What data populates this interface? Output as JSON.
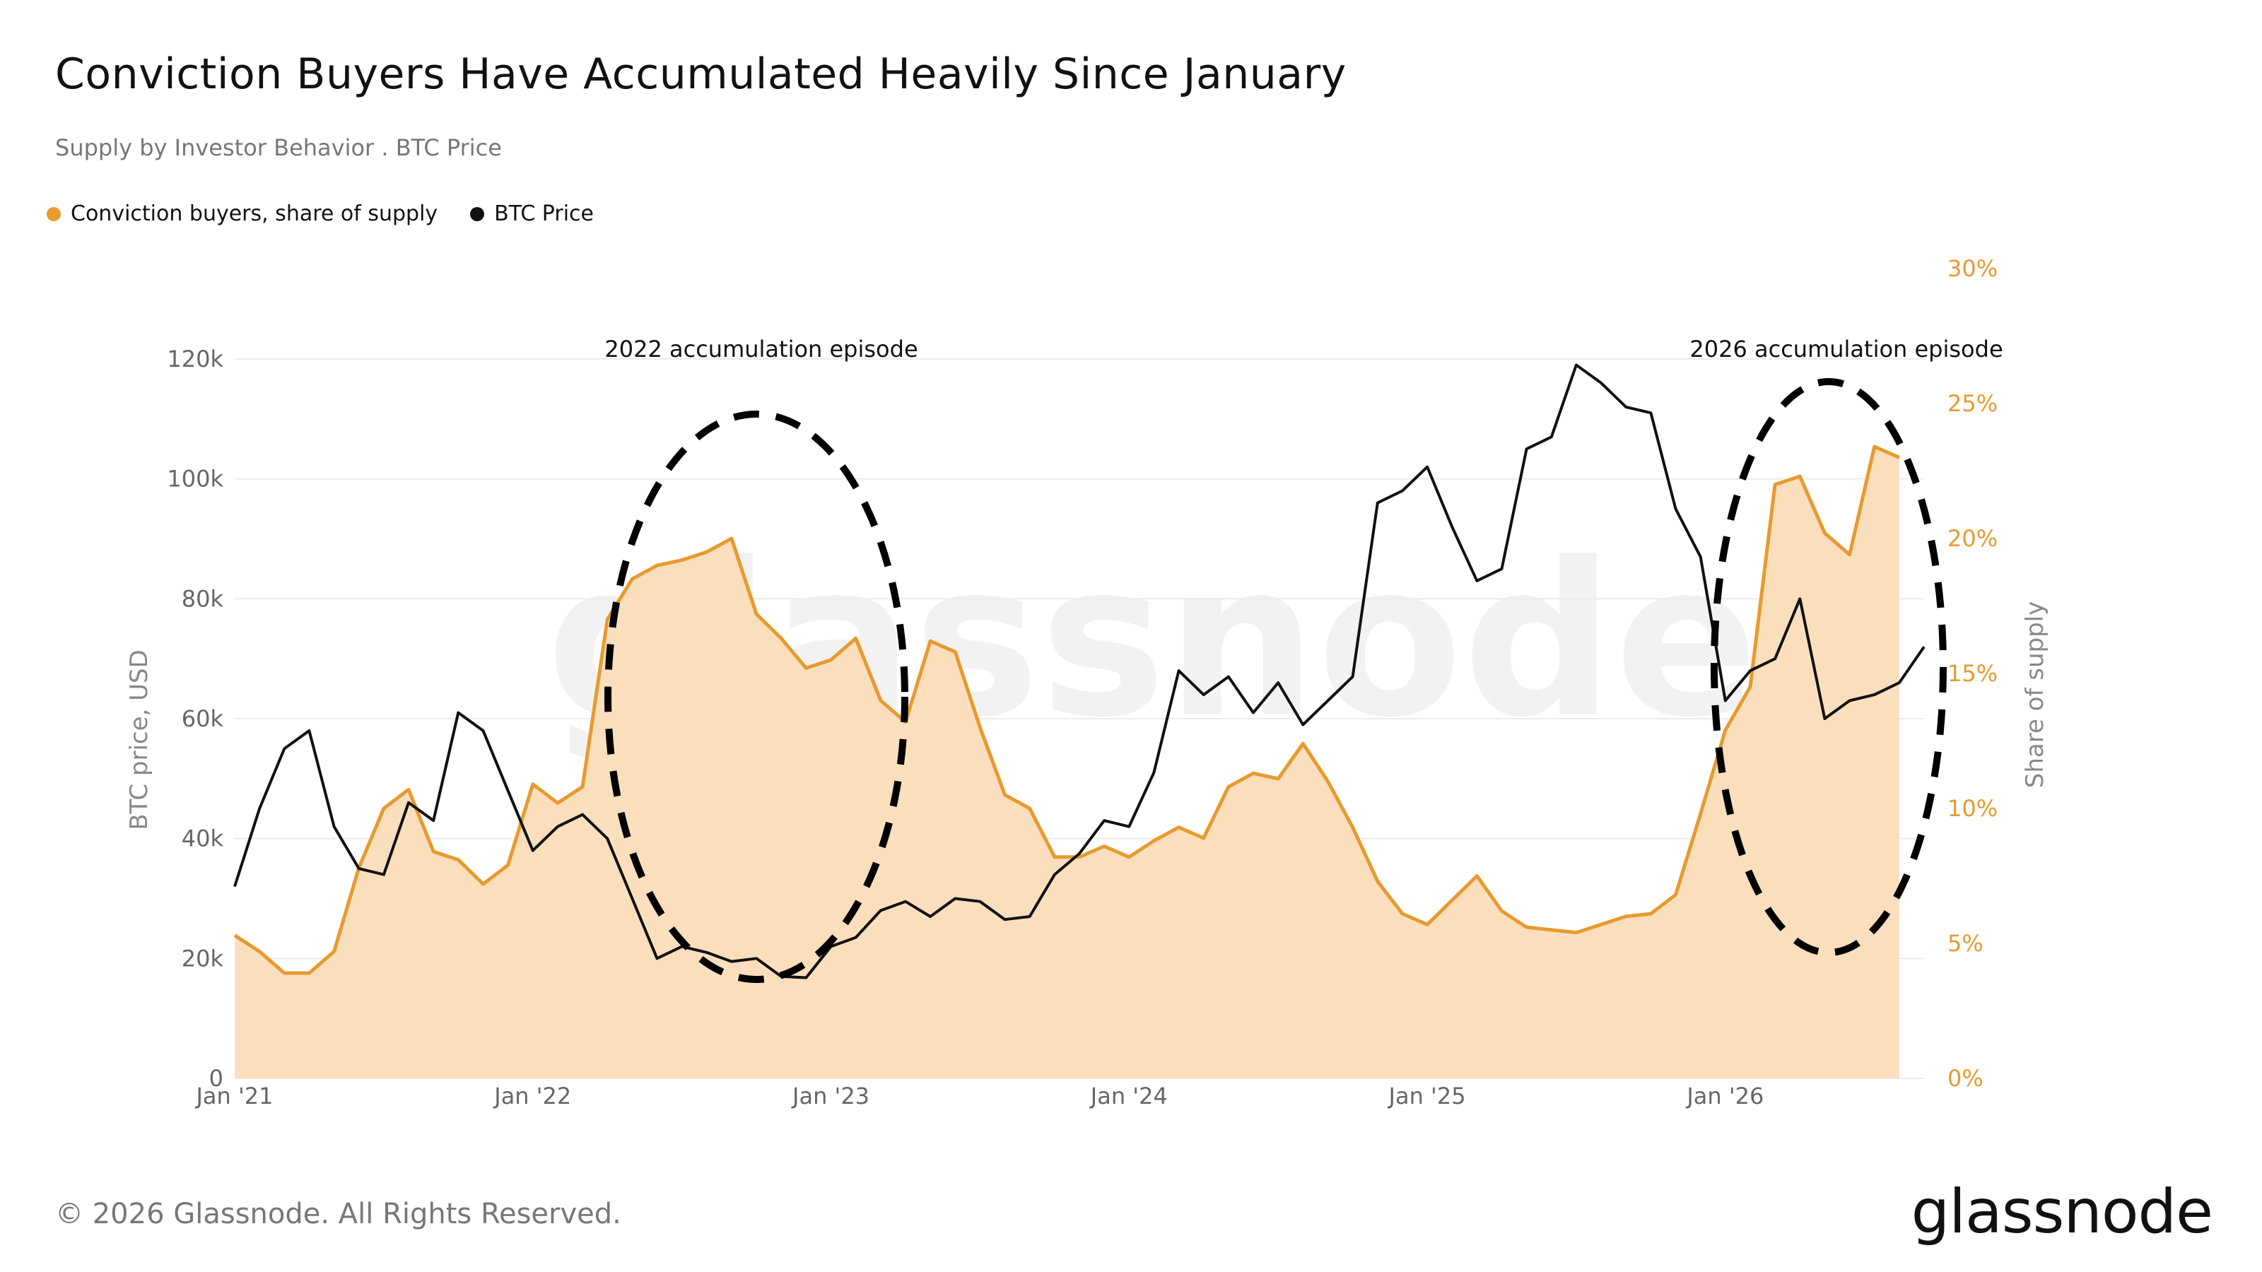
{
  "header": {
    "title": "Conviction Buyers Have Accumulated Heavily Since January",
    "subtitle": "Supply by Investor Behavior . BTC Price"
  },
  "footer": {
    "copyright": "© 2026 Glassnode. All Rights Reserved.",
    "brand": "glassnode",
    "watermark": "glassnode"
  },
  "colors": {
    "share_line": "#e79a2f",
    "share_fill": "#fbdfbd",
    "price_line": "#111111",
    "grid": "#ececec"
  },
  "chart_data": {
    "type": "line",
    "title": "Conviction Buyers Have Accumulated Heavily Since January",
    "subtitle": "Supply by Investor Behavior . BTC Price",
    "legend": {
      "placement": "top-left",
      "entries": [
        "Conviction buyers, share of supply",
        "BTC Price"
      ]
    },
    "grid": true,
    "x_axis": {
      "ticks": [
        "Jan '21",
        "Jan '22",
        "Jan '23",
        "Jan '24",
        "Jan '25",
        "Jan '26"
      ],
      "range": [
        "2021-01",
        "2026-09"
      ]
    },
    "y_left": {
      "label": "BTC price, USD",
      "ticks": [
        "0",
        "20k",
        "40k",
        "60k",
        "80k",
        "100k",
        "120k"
      ],
      "range": [
        0,
        130000
      ]
    },
    "y_right": {
      "label": "Share of supply",
      "ticks": [
        "0%",
        "5%",
        "10%",
        "15%",
        "20%",
        "25%",
        "30%"
      ],
      "range": [
        0,
        30
      ]
    },
    "annotations": [
      {
        "text": "2022 accumulation episode"
      },
      {
        "text": "2026 accumulation episode"
      }
    ],
    "series": [
      {
        "name": "Conviction buyers, share of supply",
        "axis": "right",
        "x": [
          "2021-01",
          "2021-02",
          "2021-03",
          "2021-04",
          "2021-05",
          "2021-06",
          "2021-07",
          "2021-08",
          "2021-09",
          "2021-10",
          "2021-11",
          "2021-12",
          "2022-01",
          "2022-02",
          "2022-03",
          "2022-04",
          "2022-05",
          "2022-06",
          "2022-07",
          "2022-08",
          "2022-09",
          "2022-10",
          "2022-11",
          "2022-12",
          "2023-01",
          "2023-02",
          "2023-03",
          "2023-04",
          "2023-05",
          "2023-06",
          "2023-07",
          "2023-08",
          "2023-09",
          "2023-10",
          "2023-11",
          "2023-12",
          "2024-01",
          "2024-02",
          "2024-03",
          "2024-04",
          "2024-05",
          "2024-06",
          "2024-07",
          "2024-08",
          "2024-09",
          "2024-10",
          "2024-11",
          "2024-12",
          "2025-01",
          "2025-02",
          "2025-03",
          "2025-04",
          "2025-05",
          "2025-06",
          "2025-07",
          "2025-08",
          "2025-09",
          "2025-10",
          "2025-11",
          "2025-12",
          "2026-01",
          "2026-02",
          "2026-03",
          "2026-04",
          "2026-05",
          "2026-06",
          "2026-07",
          "2026-08"
        ],
        "values": [
          5.3,
          4.7,
          3.9,
          3.9,
          4.7,
          7.8,
          10.0,
          10.7,
          8.4,
          8.1,
          7.2,
          7.9,
          10.9,
          10.2,
          10.8,
          17.0,
          18.5,
          19.0,
          19.2,
          19.5,
          20.0,
          17.2,
          16.3,
          15.2,
          15.5,
          16.3,
          14.0,
          13.2,
          16.2,
          15.8,
          13.0,
          10.5,
          10.0,
          8.2,
          8.2,
          8.6,
          8.2,
          8.8,
          9.3,
          8.9,
          10.8,
          11.3,
          11.1,
          12.4,
          11.0,
          9.3,
          7.3,
          6.1,
          5.7,
          6.6,
          7.5,
          6.2,
          5.6,
          5.5,
          5.4,
          5.7,
          6.0,
          6.1,
          6.8,
          9.8,
          12.9,
          14.5,
          22.0,
          22.3,
          20.2,
          19.4,
          23.4,
          23.0
        ]
      },
      {
        "name": "BTC Price",
        "axis": "left",
        "x": [
          "2021-01",
          "2021-02",
          "2021-03",
          "2021-04",
          "2021-05",
          "2021-06",
          "2021-07",
          "2021-08",
          "2021-09",
          "2021-10",
          "2021-11",
          "2021-12",
          "2022-01",
          "2022-02",
          "2022-03",
          "2022-04",
          "2022-05",
          "2022-06",
          "2022-07",
          "2022-08",
          "2022-09",
          "2022-10",
          "2022-11",
          "2022-12",
          "2023-01",
          "2023-02",
          "2023-03",
          "2023-04",
          "2023-05",
          "2023-06",
          "2023-07",
          "2023-08",
          "2023-09",
          "2023-10",
          "2023-11",
          "2023-12",
          "2024-01",
          "2024-02",
          "2024-03",
          "2024-04",
          "2024-05",
          "2024-06",
          "2024-07",
          "2024-08",
          "2024-09",
          "2024-10",
          "2024-11",
          "2024-12",
          "2025-01",
          "2025-02",
          "2025-03",
          "2025-04",
          "2025-05",
          "2025-06",
          "2025-07",
          "2025-08",
          "2025-09",
          "2025-10",
          "2025-11",
          "2025-12",
          "2026-01",
          "2026-02",
          "2026-03",
          "2026-04",
          "2026-05",
          "2026-06",
          "2026-07",
          "2026-08",
          "2026-09"
        ],
        "values": [
          32000,
          45000,
          55000,
          58000,
          42000,
          35000,
          34000,
          46000,
          43000,
          61000,
          58000,
          48000,
          38000,
          42000,
          44000,
          40000,
          30000,
          20000,
          22000,
          21000,
          19500,
          20000,
          17000,
          16800,
          22000,
          23500,
          28000,
          29500,
          27000,
          30000,
          29500,
          26500,
          27000,
          34000,
          37500,
          43000,
          42000,
          51000,
          68000,
          64000,
          67000,
          61000,
          66000,
          59000,
          63000,
          67000,
          96000,
          98000,
          102000,
          92000,
          83000,
          85000,
          105000,
          107000,
          119000,
          116000,
          112000,
          111000,
          95000,
          87000,
          63000,
          68000,
          70000,
          80000,
          60000,
          63000,
          64000,
          66000,
          72000
        ]
      }
    ]
  }
}
